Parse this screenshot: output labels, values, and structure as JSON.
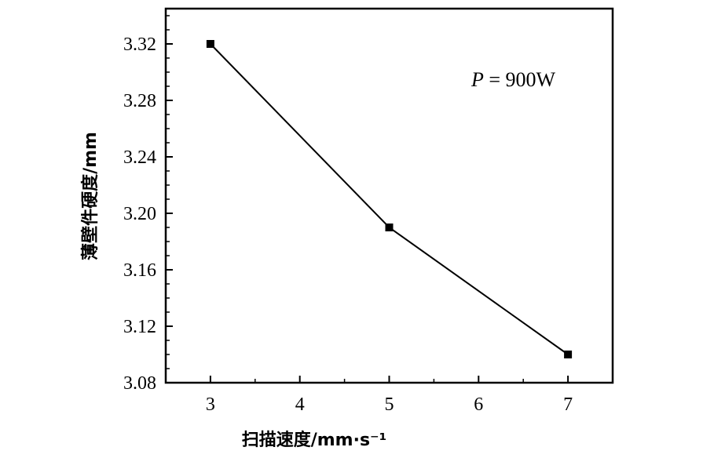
{
  "chart_data": {
    "type": "line",
    "x": [
      3,
      5,
      7
    ],
    "series": [
      {
        "values": [
          3.32,
          3.19,
          3.1
        ]
      }
    ],
    "xlabel": "扫描速度/mm·s⁻¹",
    "ylabel": "薄壁件硬度/mm",
    "xlim": [
      2.5,
      7.5
    ],
    "ylim": [
      3.08,
      3.345
    ],
    "xticks": [
      "3",
      "4",
      "5",
      "6",
      "7"
    ],
    "yticks": [
      "3.08",
      "3.12",
      "3.16",
      "3.20",
      "3.24",
      "3.28",
      "3.32"
    ],
    "annotation": {
      "var": "P",
      "rest": " = 900W"
    },
    "grid": false,
    "legend": "none"
  }
}
